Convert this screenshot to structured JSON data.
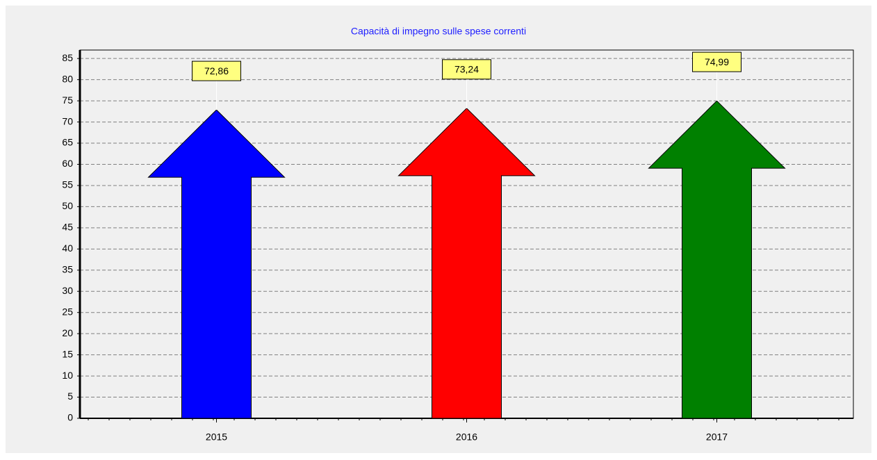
{
  "chart_data": {
    "type": "arrow",
    "title": "Capacità di impegno sulle spese correnti",
    "categories": [
      "2015",
      "2016",
      "2017"
    ],
    "series": [
      {
        "values": [
          72.86,
          73.24,
          74.99
        ],
        "value_labels": [
          "72,86",
          "73,24",
          "74,99"
        ],
        "colors": [
          "#0000ff",
          "#ff0000",
          "#008000"
        ]
      }
    ],
    "ylim": [
      0,
      87
    ],
    "yticks": [
      0,
      5,
      10,
      15,
      20,
      25,
      30,
      35,
      40,
      45,
      50,
      55,
      60,
      65,
      70,
      75,
      80,
      85
    ],
    "grid": true
  }
}
